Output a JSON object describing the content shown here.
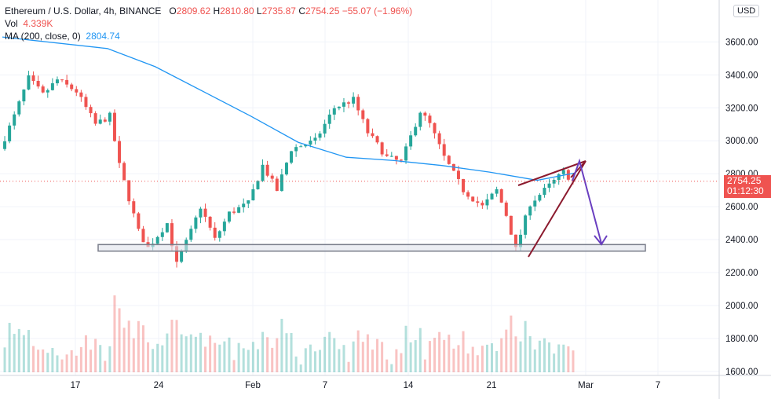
{
  "legend": {
    "symbol": "Ethereum / U.S. Dollar, 4h, BINANCE",
    "open_label": "O",
    "open": "2809.62",
    "high_label": "H",
    "high": "2810.80",
    "low_label": "L",
    "low": "2735.87",
    "close_label": "C",
    "close": "2754.25",
    "change": "−55.07 (−1.96%)",
    "vol_label": "Vol",
    "vol": "4.339K",
    "ma_label": "MA (200, close, 0)",
    "ma": "2804.74"
  },
  "currency": "USD",
  "last_price": {
    "value": "2754.25",
    "countdown": "01:12:30"
  },
  "colors": {
    "up": "#26a69a",
    "down": "#ef5350",
    "ma": "#2196f3",
    "triangle": "#8b1a2e",
    "arrow": "#6a3fc0",
    "support": "#7b7f8c"
  },
  "chart_data": {
    "type": "candlestick",
    "y_ticks": [
      1600,
      1800,
      2000,
      2200,
      2400,
      2600,
      2800,
      3000,
      3200,
      3400,
      3600
    ],
    "y_tick_labels": [
      "1600.00",
      "1800.00",
      "2000.00",
      "2200.00",
      "2400.00",
      "2600.00",
      "2800.00",
      "3000.00",
      "3200.00",
      "3400.00",
      "3600.00"
    ],
    "x_ticks": [
      "17",
      "24",
      "Feb",
      "7",
      "14",
      "21",
      "Mar",
      "7"
    ],
    "last_close": 2754.25,
    "ma_period": 200,
    "ma_value": 2804.74,
    "price_path": [
      {
        "t": 0,
        "p": 2950
      },
      {
        "t": 3,
        "p": 3150
      },
      {
        "t": 6,
        "p": 3380
      },
      {
        "t": 9,
        "p": 3280
      },
      {
        "t": 12,
        "p": 3370
      },
      {
        "t": 16,
        "p": 3300
      },
      {
        "t": 20,
        "p": 3100
      },
      {
        "t": 23,
        "p": 3150
      },
      {
        "t": 25,
        "p": 2850
      },
      {
        "t": 29,
        "p": 2450
      },
      {
        "t": 31,
        "p": 2350
      },
      {
        "t": 35,
        "p": 2500
      },
      {
        "t": 37,
        "p": 2250
      },
      {
        "t": 40,
        "p": 2450
      },
      {
        "t": 42,
        "p": 2600
      },
      {
        "t": 45,
        "p": 2400
      },
      {
        "t": 48,
        "p": 2560
      },
      {
        "t": 52,
        "p": 2620
      },
      {
        "t": 55,
        "p": 2850
      },
      {
        "t": 58,
        "p": 2700
      },
      {
        "t": 61,
        "p": 2950
      },
      {
        "t": 66,
        "p": 3000
      },
      {
        "t": 70,
        "p": 3200
      },
      {
        "t": 74,
        "p": 3250
      },
      {
        "t": 77,
        "p": 3050
      },
      {
        "t": 81,
        "p": 2900
      },
      {
        "t": 84,
        "p": 2870
      },
      {
        "t": 88,
        "p": 3180
      },
      {
        "t": 90,
        "p": 3100
      },
      {
        "t": 93,
        "p": 2900
      },
      {
        "t": 97,
        "p": 2700
      },
      {
        "t": 101,
        "p": 2600
      },
      {
        "t": 104,
        "p": 2700
      },
      {
        "t": 106,
        "p": 2550
      },
      {
        "t": 108,
        "p": 2340
      },
      {
        "t": 111,
        "p": 2620
      },
      {
        "t": 114,
        "p": 2700
      },
      {
        "t": 118,
        "p": 2810
      },
      {
        "t": 120,
        "p": 2754
      }
    ],
    "ma_path": [
      {
        "t": 0,
        "p": 3630
      },
      {
        "t": 22,
        "p": 3560
      },
      {
        "t": 32,
        "p": 3450
      },
      {
        "t": 42,
        "p": 3300
      },
      {
        "t": 52,
        "p": 3150
      },
      {
        "t": 62,
        "p": 2990
      },
      {
        "t": 72,
        "p": 2900
      },
      {
        "t": 82,
        "p": 2880
      },
      {
        "t": 92,
        "p": 2850
      },
      {
        "t": 102,
        "p": 2810
      },
      {
        "t": 112,
        "p": 2760
      },
      {
        "t": 120,
        "p": 2805
      }
    ],
    "support_zone": [
      2330,
      2370
    ],
    "volume_range": [
      0,
      50
    ]
  }
}
